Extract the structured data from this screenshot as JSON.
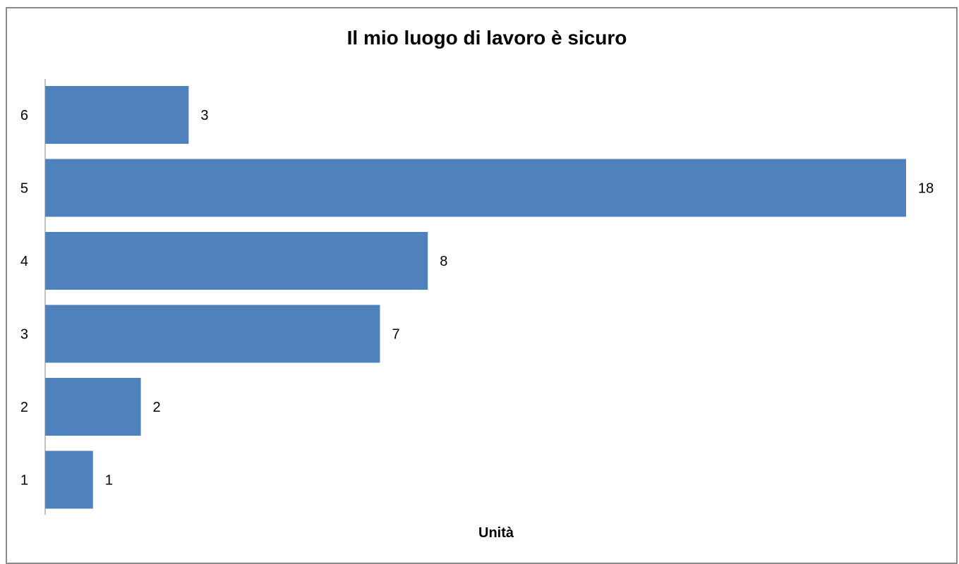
{
  "chart_data": {
    "type": "bar",
    "orientation": "horizontal",
    "title": "Il mio luogo di lavoro è sicuro",
    "xlabel": "Unità",
    "ylabel": "",
    "categories": [
      "1",
      "2",
      "3",
      "4",
      "5",
      "6"
    ],
    "values": [
      1,
      2,
      7,
      8,
      18,
      3
    ],
    "xlim": [
      0,
      18
    ],
    "grid": false,
    "legend": "none",
    "data_labels": true,
    "bar_color": "#4F81BD",
    "axis_color": "#868686"
  }
}
